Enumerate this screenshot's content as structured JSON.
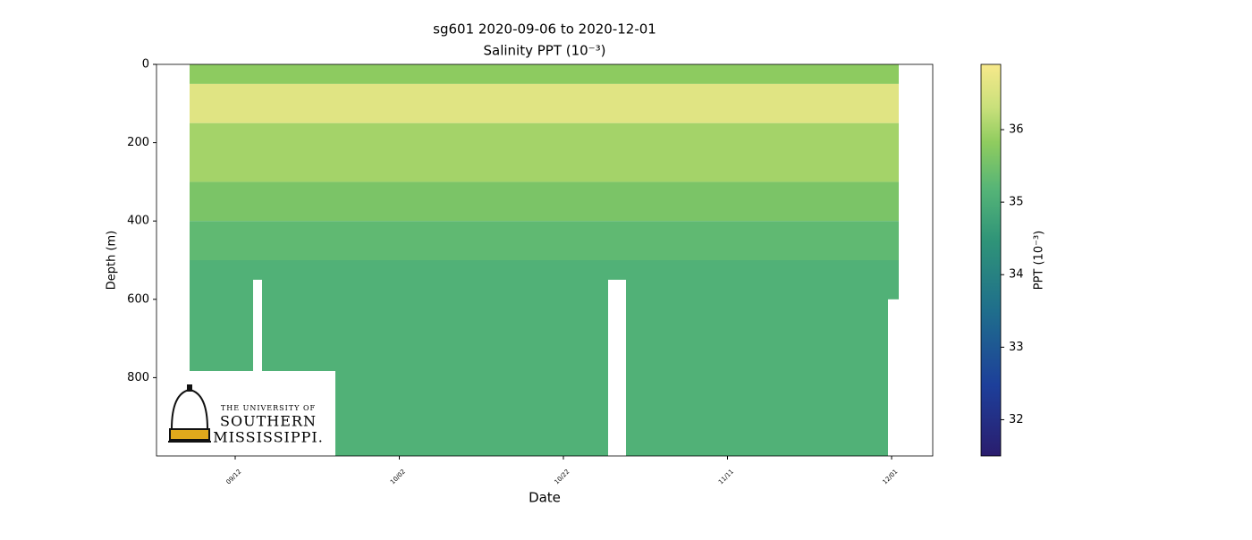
{
  "chart_data": {
    "type": "heatmap",
    "title": "sg601 2020-09-06 to 2020-12-01",
    "subtitle": "Salinity PPT (10⁻³)",
    "x_label": "Date",
    "y_label": "Depth (m)",
    "xticks": [
      "09/12",
      "10/02",
      "10/22",
      "11/11",
      "12/01"
    ],
    "ylim": [
      0,
      1000
    ],
    "yticks": [
      0,
      200,
      400,
      600,
      800
    ],
    "depth_bins": [
      0,
      50,
      150,
      300,
      400,
      500,
      1000
    ],
    "values": [
      35.8,
      36.6,
      36.0,
      35.6,
      35.3,
      35.1
    ],
    "colorbar_label": "PPT (10⁻³)",
    "clim": [
      31.5,
      36.9
    ],
    "colorbar_ticks": [
      32,
      33,
      34,
      35,
      36
    ]
  },
  "logo": {
    "line1": "THE UNIVERSITY OF",
    "line2": "SOUTHERN",
    "line3": "MISSISSIPPI."
  }
}
